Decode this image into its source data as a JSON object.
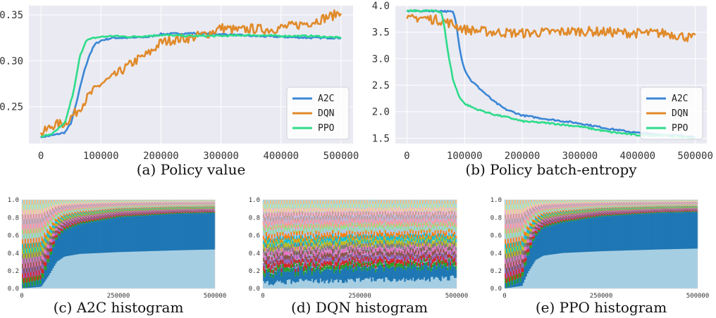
{
  "colors": {
    "A2C": "#3a86d6",
    "DQN": "#e08a2a",
    "PPO": "#2edc8a",
    "panel_bg": "#eaeaf2",
    "grid": "#ffffff"
  },
  "chart_data": [
    {
      "id": "a",
      "type": "line",
      "title": "",
      "caption": "(a) Policy value",
      "xlabel": "",
      "ylabel": "",
      "xlim": [
        -20000,
        520000
      ],
      "ylim": [
        0.21,
        0.36
      ],
      "xticks": [
        0,
        100000,
        200000,
        300000,
        400000,
        500000
      ],
      "xtick_labels": [
        "0",
        "100000",
        "200000",
        "300000",
        "400000",
        "500000"
      ],
      "yticks": [
        0.25,
        0.3,
        0.35
      ],
      "ytick_labels": [
        "0.25",
        "0.30",
        "0.35"
      ],
      "grid": true,
      "legend": "bottom-right",
      "legend_labels": [
        "A2C",
        "DQN",
        "PPO"
      ],
      "series": [
        {
          "name": "A2C",
          "x": [
            0,
            20000,
            40000,
            50000,
            60000,
            70000,
            80000,
            90000,
            100000,
            120000,
            150000,
            180000,
            200000,
            250000,
            300000,
            350000,
            400000,
            450000,
            500000
          ],
          "values": [
            0.217,
            0.219,
            0.222,
            0.232,
            0.256,
            0.284,
            0.305,
            0.318,
            0.322,
            0.325,
            0.325,
            0.326,
            0.329,
            0.33,
            0.329,
            0.327,
            0.326,
            0.325,
            0.325
          ]
        },
        {
          "name": "DQN",
          "x": [
            0,
            20000,
            40000,
            60000,
            80000,
            100000,
            120000,
            140000,
            160000,
            180000,
            200000,
            220000,
            250000,
            280000,
            300000,
            330000,
            350000,
            380000,
            400000,
            420000,
            450000,
            470000,
            490000,
            500000
          ],
          "values": [
            0.22,
            0.23,
            0.232,
            0.245,
            0.262,
            0.275,
            0.282,
            0.292,
            0.301,
            0.308,
            0.32,
            0.323,
            0.325,
            0.33,
            0.336,
            0.333,
            0.335,
            0.334,
            0.336,
            0.338,
            0.342,
            0.346,
            0.35,
            0.355
          ]
        },
        {
          "name": "PPO",
          "x": [
            0,
            20000,
            40000,
            55000,
            65000,
            75000,
            90000,
            100000,
            120000,
            150000,
            200000,
            250000,
            300000,
            350000,
            400000,
            450000,
            500000
          ],
          "values": [
            0.217,
            0.221,
            0.232,
            0.268,
            0.305,
            0.322,
            0.325,
            0.326,
            0.327,
            0.326,
            0.328,
            0.327,
            0.327,
            0.328,
            0.327,
            0.327,
            0.325
          ]
        }
      ]
    },
    {
      "id": "b",
      "type": "line",
      "title": "",
      "caption": "(b) Policy batch-entropy",
      "xlabel": "",
      "ylabel": "",
      "xlim": [
        -20000,
        520000
      ],
      "ylim": [
        1.4,
        4.0
      ],
      "xticks": [
        0,
        100000,
        200000,
        300000,
        400000,
        500000
      ],
      "xtick_labels": [
        "0",
        "100000",
        "200000",
        "300000",
        "400000",
        "500000"
      ],
      "yticks": [
        1.5,
        2.0,
        2.5,
        3.0,
        3.5,
        4.0
      ],
      "ytick_labels": [
        "1.5",
        "2.0",
        "2.5",
        "3.0",
        "3.5",
        "4.0"
      ],
      "grid": true,
      "legend": "bottom-right",
      "legend_labels": [
        "A2C",
        "DQN",
        "PPO"
      ],
      "series": [
        {
          "name": "A2C",
          "x": [
            0,
            60000,
            80000,
            85000,
            90000,
            95000,
            100000,
            110000,
            130000,
            150000,
            170000,
            200000,
            250000,
            300000,
            350000,
            400000,
            450000,
            500000
          ],
          "values": [
            3.9,
            3.9,
            3.88,
            3.7,
            3.3,
            3.0,
            2.8,
            2.6,
            2.4,
            2.2,
            2.05,
            1.93,
            1.85,
            1.78,
            1.68,
            1.6,
            1.56,
            1.53
          ]
        },
        {
          "name": "DQN",
          "x": [
            0,
            20000,
            40000,
            60000,
            80000,
            100000,
            150000,
            200000,
            250000,
            300000,
            350000,
            400000,
            450000,
            500000
          ],
          "values": [
            3.72,
            3.78,
            3.75,
            3.72,
            3.65,
            3.55,
            3.5,
            3.48,
            3.5,
            3.52,
            3.5,
            3.48,
            3.48,
            3.38
          ]
        },
        {
          "name": "PPO",
          "x": [
            0,
            50000,
            60000,
            65000,
            70000,
            80000,
            90000,
            100000,
            120000,
            150000,
            180000,
            200000,
            250000,
            300000,
            350000,
            400000,
            450000,
            500000
          ],
          "values": [
            3.9,
            3.9,
            3.88,
            3.6,
            3.2,
            2.6,
            2.3,
            2.15,
            2.05,
            1.95,
            1.88,
            1.82,
            1.78,
            1.72,
            1.62,
            1.56,
            1.55,
            1.5
          ]
        }
      ]
    },
    {
      "id": "c",
      "type": "area",
      "caption": "(c) A2C histogram",
      "xlim": [
        0,
        500000
      ],
      "ylim": [
        0,
        1.0
      ],
      "xticks": [
        0,
        250000,
        500000
      ],
      "xtick_labels": [
        "0",
        "250000",
        "500000"
      ],
      "yticks": [
        0.0,
        0.2,
        0.4,
        0.6,
        0.8,
        1.0
      ],
      "ytick_labels": [
        "0.0",
        "0.2",
        "0.4",
        "0.6",
        "0.8",
        "1.0"
      ],
      "lower_band": {
        "x": [
          0,
          50000,
          70000,
          90000,
          110000,
          150000,
          250000,
          400000,
          500000
        ],
        "values": [
          0.0,
          0.02,
          0.15,
          0.3,
          0.36,
          0.39,
          0.41,
          0.43,
          0.44
        ]
      },
      "upper_band": {
        "x": [
          0,
          50000,
          70000,
          90000,
          110000,
          150000,
          250000,
          400000,
          500000
        ],
        "values": [
          0.0,
          0.05,
          0.3,
          0.55,
          0.65,
          0.72,
          0.8,
          0.84,
          0.85
        ]
      }
    },
    {
      "id": "d",
      "type": "area",
      "caption": "(d) DQN histogram",
      "xlim": [
        0,
        500000
      ],
      "ylim": [
        0,
        1.0
      ],
      "xticks": [
        0,
        250000,
        500000
      ],
      "xtick_labels": [
        "0",
        "250000",
        "500000"
      ],
      "yticks": [
        0.0,
        0.2,
        0.4,
        0.6,
        0.8,
        1.0
      ],
      "ytick_labels": [
        "0.0",
        "0.2",
        "0.4",
        "0.6",
        "0.8",
        "1.0"
      ],
      "lower_band": {
        "x": [
          0,
          100000,
          200000,
          300000,
          400000,
          500000
        ],
        "values": [
          0.06,
          0.08,
          0.09,
          0.1,
          0.1,
          0.12
        ]
      },
      "upper_band": {
        "x": [
          0,
          100000,
          200000,
          300000,
          400000,
          500000
        ],
        "values": [
          0.14,
          0.18,
          0.2,
          0.22,
          0.22,
          0.24
        ]
      }
    },
    {
      "id": "e",
      "type": "area",
      "caption": "(e) PPO histogram",
      "xlim": [
        0,
        500000
      ],
      "ylim": [
        0,
        1.0
      ],
      "xticks": [
        0,
        250000,
        500000
      ],
      "xtick_labels": [
        "0",
        "250000",
        "500000"
      ],
      "yticks": [
        0.0,
        0.2,
        0.4,
        0.6,
        0.8,
        1.0
      ],
      "ytick_labels": [
        "0.0",
        "0.2",
        "0.4",
        "0.6",
        "0.8",
        "1.0"
      ],
      "lower_band": {
        "x": [
          0,
          45000,
          60000,
          80000,
          100000,
          150000,
          250000,
          400000,
          500000
        ],
        "values": [
          0.0,
          0.03,
          0.18,
          0.32,
          0.37,
          0.4,
          0.42,
          0.44,
          0.45
        ]
      },
      "upper_band": {
        "x": [
          0,
          45000,
          60000,
          80000,
          100000,
          150000,
          250000,
          400000,
          500000
        ],
        "values": [
          0.0,
          0.08,
          0.35,
          0.58,
          0.68,
          0.74,
          0.81,
          0.85,
          0.86
        ]
      }
    }
  ]
}
